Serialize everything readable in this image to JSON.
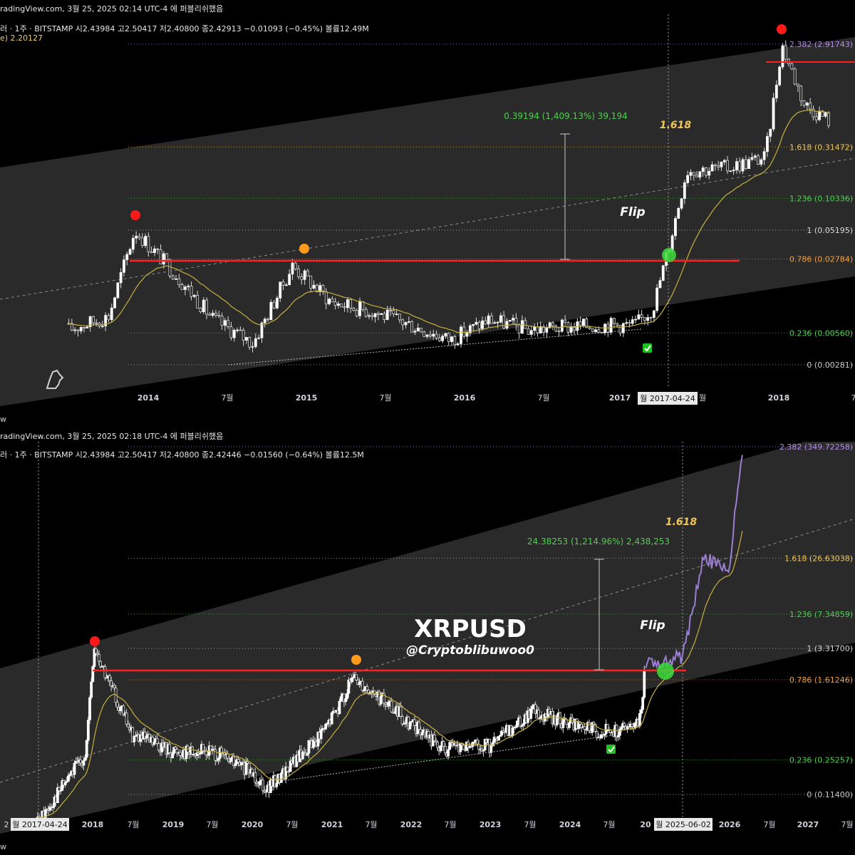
{
  "top_panel": {
    "publish_line": "radingView.com, 3월 25, 2025 02:14 UTC-4 에 퍼블리쉬했음",
    "ohlc_line": "러 · 1주 · BITSTAMP  시2.43984  고2.50417  저2.40800  종2.42913  −0.01093 (−0.45%)  볼륨12.49M",
    "ma_line": "e)  2.20127",
    "measure_label": "0.39194 (1,409.13%) 39,194",
    "fib_target_label": "1.618",
    "flip_label": "Flip",
    "crosshair_date": "월 2017-04-24",
    "time_ticks": [
      "2014",
      "7월",
      "2015",
      "7월",
      "2016",
      "7월",
      "2017",
      "2018"
    ],
    "edge_tick": "7",
    "edge_tick_hidden": "월",
    "fib_levels": [
      {
        "label": "2.382 (2.91743)",
        "color": "#b48ce6"
      },
      {
        "label": "1.618 (0.31472)",
        "color": "#f0c85a"
      },
      {
        "label": "1.236 (0.10336)",
        "color": "#4fd04f"
      },
      {
        "label": "1 (0.05195)",
        "color": "#d8d8d8"
      },
      {
        "label": "0.786 (0.02784)",
        "color": "#f0a040"
      },
      {
        "label": "0.236 (0.00560)",
        "color": "#4fd04f"
      },
      {
        "label": "0 (0.00281)",
        "color": "#c8c8c8"
      }
    ]
  },
  "bottom_panel": {
    "publish_line": "radingView.com, 3월 25, 2025 02:18 UTC-4 에 퍼블리쉬했음",
    "ohlc_line": "러 · 1주 · BITSTAMP  시2.43984  고2.50417  저2.40800  종2.42446  −0.01560 (−0.64%)  볼륨12.5M",
    "measure_label": "24.38253 (1,214.96%) 2,438,253",
    "fib_target_label": "1.618",
    "flip_label": "Flip",
    "title": "XRPUSD",
    "author": "@Cryptoblibuwoo0",
    "crosshair_date_left": "월 2017-04-24",
    "crosshair_date_right": "월 2025-06-02",
    "time_ticks": [
      "2018",
      "7월",
      "2019",
      "7월",
      "2020",
      "7월",
      "2021",
      "7월",
      "2022",
      "7월",
      "2023",
      "7월",
      "2024",
      "7월",
      "20",
      "2026",
      "7월",
      "2027",
      "7월"
    ],
    "left_edge_tick": "2",
    "fib_levels": [
      {
        "label": "2.382 (349.72258)",
        "color": "#b48ce6"
      },
      {
        "label": "1.618 (26.63038)",
        "color": "#f0c85a"
      },
      {
        "label": "1.236 (7.34859)",
        "color": "#4fd04f"
      },
      {
        "label": "1 (3.31700)",
        "color": "#d8d8d8"
      },
      {
        "label": "0.786 (1.61246)",
        "color": "#f0a040"
      },
      {
        "label": "0.236 (0.25257)",
        "color": "#4fd04f"
      },
      {
        "label": "0 (0.11400)",
        "color": "#c8c8c8"
      }
    ]
  },
  "separator_text": "w",
  "footer_text": "w",
  "colors": {
    "background": "#000000",
    "channel": "#2a2a2a",
    "resistance": "#ff2020",
    "ma": "#c8b040",
    "projection": "#9b7fd4",
    "peak_marker": "#ff1a1a",
    "retest_marker": "#ff9a1a",
    "flip_marker": "#3ddc3d",
    "check_badge": "#21c021"
  },
  "chart_data": [
    {
      "type": "line",
      "title": "",
      "scale": "log",
      "y_fib_ratios": [
        2.382,
        1.618,
        1.236,
        1,
        0.786,
        0.236,
        0
      ],
      "y_fib_prices": [
        2.91743,
        0.31472,
        0.10336,
        0.05195,
        0.02784,
        0.0056,
        0.00281
      ],
      "x_dates": [
        "2013-07-01",
        "2013-10-01",
        "2013-12-01",
        "2014-03-01",
        "2014-06-01",
        "2014-09-01",
        "2014-12-01",
        "2015-03-01",
        "2015-06-01",
        "2015-09-01",
        "2015-12-01",
        "2016-03-01",
        "2016-06-01",
        "2016-09-01",
        "2016-12-01",
        "2017-02-01",
        "2017-03-15",
        "2017-04-24",
        "2017-06-01",
        "2017-09-01",
        "2017-12-01",
        "2018-01-08",
        "2018-03-01",
        "2018-05-01"
      ],
      "price": [
        0.006,
        0.008,
        0.052,
        0.021,
        0.0075,
        0.0045,
        0.024,
        0.011,
        0.009,
        0.0067,
        0.0048,
        0.0075,
        0.006,
        0.0064,
        0.0067,
        0.0066,
        0.0095,
        0.04,
        0.19,
        0.2,
        0.25,
        2.9,
        0.8,
        0.55
      ],
      "resistance_price": 0.02784,
      "measured_move": 0.39194,
      "measured_move_pct": 1409.13
    },
    {
      "type": "line",
      "title": "XRPUSD",
      "scale": "log",
      "y_fib_ratios": [
        2.382,
        1.618,
        1.236,
        1,
        0.786,
        0.236,
        0
      ],
      "y_fib_prices": [
        349.72258,
        26.63038,
        7.34859,
        3.317,
        1.61246,
        0.25257,
        0.114
      ],
      "x_dates": [
        "2017-04-24",
        "2017-12-01",
        "2018-01-08",
        "2018-07-01",
        "2019-01-01",
        "2019-07-01",
        "2020-01-01",
        "2020-03-15",
        "2020-12-01",
        "2021-04-15",
        "2021-09-01",
        "2022-06-01",
        "2023-01-01",
        "2023-07-15",
        "2024-03-01",
        "2024-07-01",
        "2024-11-10",
        "2024-12-15",
        "2025-03-20",
        "2025-06-02",
        "2025-09-01",
        "2026-01-01",
        "2026-03-01"
      ],
      "price": [
        0.06,
        0.3,
        3.3,
        0.45,
        0.31,
        0.31,
        0.19,
        0.13,
        0.5,
        1.7,
        0.95,
        0.32,
        0.35,
        0.8,
        0.52,
        0.48,
        0.55,
        2.5,
        2.43,
        2.8,
        26,
        22,
        349.7
      ],
      "resistance_price": 1.61246,
      "measured_move": 24.38253,
      "measured_move_pct": 1214.96
    }
  ]
}
